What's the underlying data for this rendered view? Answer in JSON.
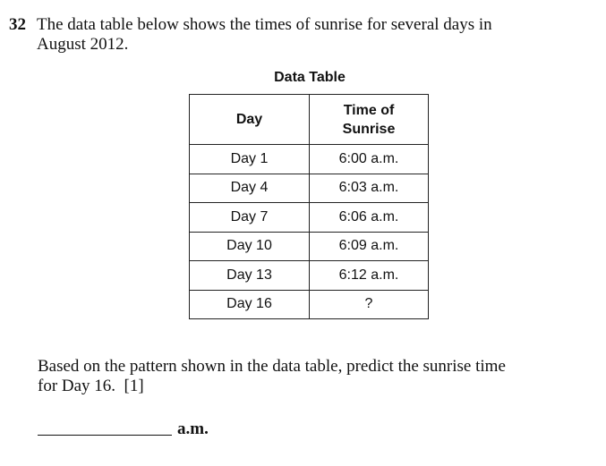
{
  "question": {
    "number": "32",
    "text_line1": "The data table below shows the times of sunrise for several days in",
    "text_line2": "August 2012."
  },
  "table": {
    "title": "Data Table",
    "headers": {
      "day": "Day",
      "time_line1": "Time of",
      "time_line2": "Sunrise"
    },
    "rows": [
      {
        "day": "Day 1",
        "time": "6:00 a.m."
      },
      {
        "day": "Day 4",
        "time": "6:03 a.m."
      },
      {
        "day": "Day 7",
        "time": "6:06 a.m."
      },
      {
        "day": "Day 10",
        "time": "6:09 a.m."
      },
      {
        "day": "Day 13",
        "time": "6:12 a.m."
      },
      {
        "day": "Day 16",
        "time": "?"
      }
    ]
  },
  "prompt": {
    "line1": "Based on the pattern shown in the data table, predict the sunrise time",
    "line2": "for Day 16.  [1]"
  },
  "answer": {
    "unit": "a.m."
  }
}
